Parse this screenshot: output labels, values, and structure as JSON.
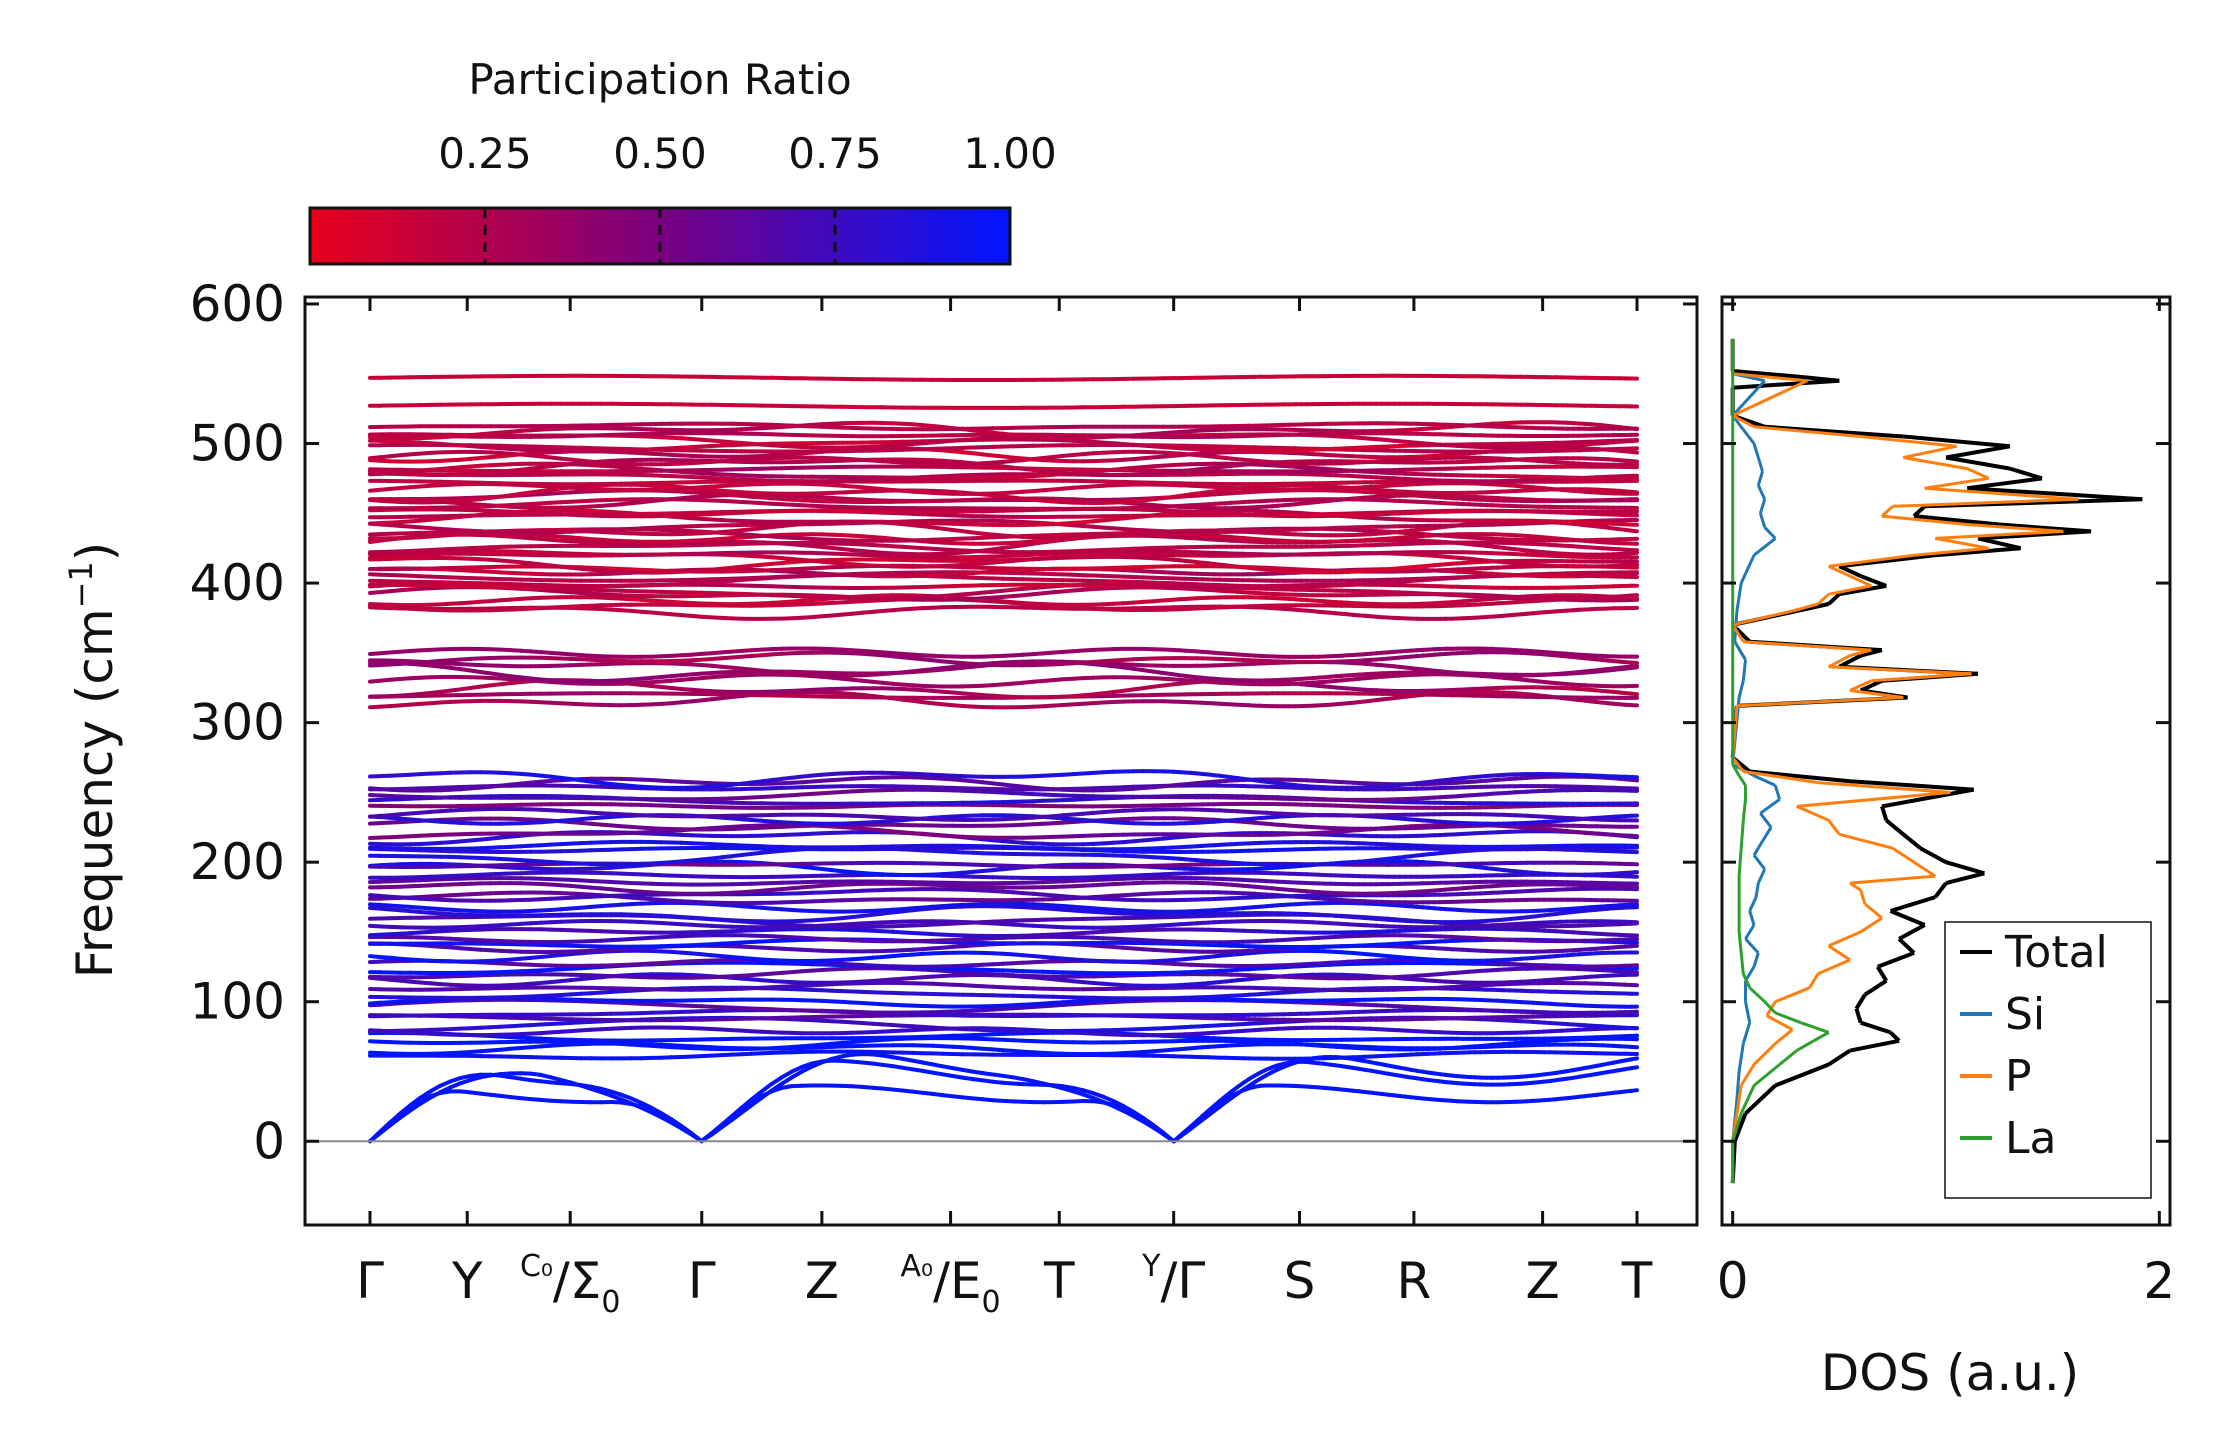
{
  "chart_data": [
    {
      "type": "line",
      "subtype": "phonon-band-structure",
      "ylabel": "Frequency (cm",
      "ylabel_sup": "−1",
      "ylabel_close": ")",
      "ylim": [
        -60,
        605
      ],
      "yticks": [
        0,
        100,
        200,
        300,
        400,
        500,
        600
      ],
      "grid": false,
      "zero_line": true,
      "kpoints": [
        {
          "main": "Γ",
          "k": 0.0
        },
        {
          "main": "Y",
          "k": 0.68
        },
        {
          "sup": "C₀",
          "main": "/Σ",
          "sub": "0",
          "k": 1.4
        },
        {
          "main": "Γ",
          "k": 2.32
        },
        {
          "main": "Z",
          "k": 3.16
        },
        {
          "sup": "A₀",
          "main": "/E",
          "sub": "0",
          "k": 4.06
        },
        {
          "main": "T",
          "k": 4.82
        },
        {
          "sup": "Y",
          "main": "/Γ",
          "k": 5.62
        },
        {
          "main": "S",
          "k": 6.5
        },
        {
          "main": "R",
          "k": 7.3
        },
        {
          "main": "Z",
          "k": 8.2
        },
        {
          "main": "T",
          "k": 8.86
        }
      ],
      "branch_break_k": 5.62,
      "colorbar": {
        "label": "Participation Ratio",
        "range": [
          0.0,
          1.0
        ],
        "ticks": [
          0.25,
          0.5,
          0.75,
          1.0
        ],
        "ticklabels": [
          "0.25",
          "0.50",
          "0.75",
          "1.00"
        ],
        "color_low": "#e8001c",
        "color_mid": "#7a0080",
        "color_high": "#0015ff"
      },
      "bands": {
        "acoustic_max_frequency": 65,
        "low_group": {
          "range": [
            60,
            265
          ],
          "participation_ratio": [
            0.4,
            0.85
          ]
        },
        "mid_group": {
          "range": [
            313,
            355
          ],
          "participation_ratio": [
            0.3,
            0.4
          ]
        },
        "high_group": {
          "range": [
            380,
            515
          ],
          "participation_ratio": [
            0.15,
            0.25
          ]
        },
        "top_bands": [
          527,
          547
        ]
      }
    },
    {
      "type": "line",
      "subtype": "density-of-states",
      "xlabel": "DOS (a.u.)",
      "xlim": [
        -0.05,
        2.05
      ],
      "xticks": [
        0,
        2
      ],
      "xticklabels": [
        "0",
        "2"
      ],
      "ylim": [
        -60,
        605
      ],
      "legend_position": "bottom-right",
      "series": [
        {
          "name": "Total",
          "color": "#000000",
          "points": [
            [
              -30,
              0
            ],
            [
              0,
              0.01
            ],
            [
              20,
              0.06
            ],
            [
              40,
              0.2
            ],
            [
              55,
              0.45
            ],
            [
              65,
              0.55
            ],
            [
              72,
              0.78
            ],
            [
              78,
              0.74
            ],
            [
              85,
              0.6
            ],
            [
              95,
              0.58
            ],
            [
              105,
              0.62
            ],
            [
              115,
              0.72
            ],
            [
              125,
              0.68
            ],
            [
              135,
              0.85
            ],
            [
              145,
              0.78
            ],
            [
              155,
              0.9
            ],
            [
              165,
              0.74
            ],
            [
              175,
              0.95
            ],
            [
              185,
              1.0
            ],
            [
              192,
              1.18
            ],
            [
              200,
              1.0
            ],
            [
              210,
              0.88
            ],
            [
              220,
              0.8
            ],
            [
              230,
              0.72
            ],
            [
              240,
              0.7
            ],
            [
              252,
              1.13
            ],
            [
              258,
              0.55
            ],
            [
              265,
              0.08
            ],
            [
              275,
              0.0
            ],
            [
              312,
              0.02
            ],
            [
              318,
              0.82
            ],
            [
              323,
              0.6
            ],
            [
              330,
              0.7
            ],
            [
              335,
              1.15
            ],
            [
              340,
              0.5
            ],
            [
              348,
              0.6
            ],
            [
              352,
              0.7
            ],
            [
              358,
              0.08
            ],
            [
              370,
              0.0
            ],
            [
              380,
              0.3
            ],
            [
              385,
              0.45
            ],
            [
              392,
              0.5
            ],
            [
              398,
              0.72
            ],
            [
              405,
              0.6
            ],
            [
              412,
              0.5
            ],
            [
              420,
              0.95
            ],
            [
              425,
              1.35
            ],
            [
              432,
              1.15
            ],
            [
              437,
              1.68
            ],
            [
              442,
              1.25
            ],
            [
              448,
              0.85
            ],
            [
              455,
              0.9
            ],
            [
              460,
              1.92
            ],
            [
              468,
              1.1
            ],
            [
              475,
              1.45
            ],
            [
              482,
              1.3
            ],
            [
              490,
              1.0
            ],
            [
              498,
              1.3
            ],
            [
              505,
              0.8
            ],
            [
              512,
              0.15
            ],
            [
              520,
              0.0
            ],
            [
              540,
              0.0
            ],
            [
              545,
              0.5
            ],
            [
              548,
              0.3
            ],
            [
              552,
              0.0
            ],
            [
              575,
              0.0
            ]
          ]
        },
        {
          "name": "Si",
          "color": "#1f77b4",
          "points": [
            [
              -30,
              0
            ],
            [
              0,
              0.0
            ],
            [
              30,
              0.02
            ],
            [
              50,
              0.03
            ],
            [
              70,
              0.05
            ],
            [
              85,
              0.08
            ],
            [
              100,
              0.06
            ],
            [
              115,
              0.06
            ],
            [
              125,
              0.1
            ],
            [
              135,
              0.12
            ],
            [
              145,
              0.06
            ],
            [
              155,
              0.1
            ],
            [
              165,
              0.08
            ],
            [
              175,
              0.11
            ],
            [
              185,
              0.12
            ],
            [
              195,
              0.15
            ],
            [
              205,
              0.1
            ],
            [
              215,
              0.14
            ],
            [
              225,
              0.18
            ],
            [
              235,
              0.13
            ],
            [
              245,
              0.22
            ],
            [
              255,
              0.2
            ],
            [
              262,
              0.1
            ],
            [
              270,
              0.0
            ],
            [
              318,
              0.03
            ],
            [
              330,
              0.05
            ],
            [
              345,
              0.06
            ],
            [
              358,
              0.01
            ],
            [
              380,
              0.02
            ],
            [
              400,
              0.04
            ],
            [
              420,
              0.1
            ],
            [
              432,
              0.2
            ],
            [
              440,
              0.15
            ],
            [
              450,
              0.13
            ],
            [
              460,
              0.15
            ],
            [
              470,
              0.12
            ],
            [
              480,
              0.14
            ],
            [
              490,
              0.12
            ],
            [
              500,
              0.1
            ],
            [
              510,
              0.05
            ],
            [
              520,
              0.0
            ],
            [
              545,
              0.15
            ],
            [
              550,
              0.0
            ],
            [
              575,
              0.0
            ]
          ]
        },
        {
          "name": "P",
          "color": "#ff7f0e",
          "points": [
            [
              -30,
              0
            ],
            [
              0,
              0.0
            ],
            [
              40,
              0.04
            ],
            [
              55,
              0.1
            ],
            [
              70,
              0.2
            ],
            [
              80,
              0.28
            ],
            [
              90,
              0.16
            ],
            [
              100,
              0.2
            ],
            [
              110,
              0.36
            ],
            [
              120,
              0.4
            ],
            [
              130,
              0.55
            ],
            [
              140,
              0.45
            ],
            [
              150,
              0.6
            ],
            [
              160,
              0.7
            ],
            [
              170,
              0.62
            ],
            [
              180,
              0.6
            ],
            [
              185,
              0.55
            ],
            [
              190,
              0.95
            ],
            [
              200,
              0.85
            ],
            [
              210,
              0.75
            ],
            [
              220,
              0.5
            ],
            [
              230,
              0.45
            ],
            [
              240,
              0.3
            ],
            [
              250,
              1.02
            ],
            [
              257,
              0.4
            ],
            [
              265,
              0.05
            ],
            [
              275,
              0.0
            ],
            [
              312,
              0.02
            ],
            [
              318,
              0.8
            ],
            [
              323,
              0.55
            ],
            [
              330,
              0.65
            ],
            [
              335,
              1.12
            ],
            [
              340,
              0.45
            ],
            [
              348,
              0.55
            ],
            [
              352,
              0.65
            ],
            [
              358,
              0.05
            ],
            [
              370,
              0.0
            ],
            [
              380,
              0.28
            ],
            [
              385,
              0.4
            ],
            [
              392,
              0.45
            ],
            [
              398,
              0.65
            ],
            [
              405,
              0.55
            ],
            [
              412,
              0.45
            ],
            [
              420,
              0.85
            ],
            [
              425,
              1.2
            ],
            [
              432,
              0.95
            ],
            [
              437,
              1.55
            ],
            [
              442,
              1.1
            ],
            [
              448,
              0.7
            ],
            [
              455,
              0.75
            ],
            [
              460,
              1.62
            ],
            [
              468,
              0.9
            ],
            [
              475,
              1.2
            ],
            [
              482,
              1.1
            ],
            [
              490,
              0.8
            ],
            [
              498,
              1.05
            ],
            [
              505,
              0.6
            ],
            [
              512,
              0.1
            ],
            [
              520,
              0.0
            ],
            [
              545,
              0.35
            ],
            [
              550,
              0.0
            ],
            [
              575,
              0.0
            ]
          ]
        },
        {
          "name": "La",
          "color": "#2ca02c",
          "points": [
            [
              -30,
              0
            ],
            [
              0,
              0.0
            ],
            [
              20,
              0.04
            ],
            [
              40,
              0.1
            ],
            [
              55,
              0.22
            ],
            [
              65,
              0.3
            ],
            [
              72,
              0.38
            ],
            [
              78,
              0.45
            ],
            [
              85,
              0.32
            ],
            [
              92,
              0.2
            ],
            [
              100,
              0.15
            ],
            [
              110,
              0.08
            ],
            [
              120,
              0.05
            ],
            [
              135,
              0.04
            ],
            [
              150,
              0.03
            ],
            [
              170,
              0.03
            ],
            [
              190,
              0.03
            ],
            [
              210,
              0.04
            ],
            [
              230,
              0.05
            ],
            [
              245,
              0.06
            ],
            [
              255,
              0.06
            ],
            [
              262,
              0.03
            ],
            [
              270,
              0.0
            ],
            [
              575,
              0.0
            ]
          ]
        }
      ]
    }
  ]
}
